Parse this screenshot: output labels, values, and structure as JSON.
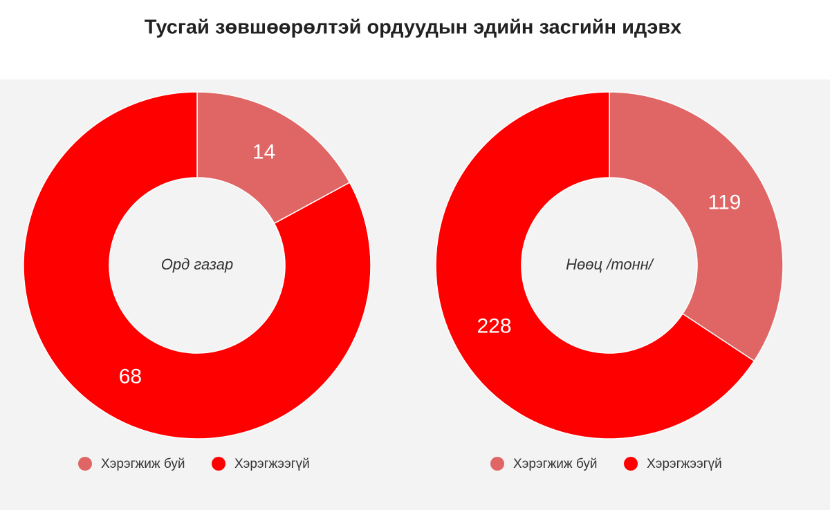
{
  "title": "Тусгай зөвшөөрөлтэй ордуудын эдийн засгийн идэвх",
  "chart_data": [
    {
      "type": "pie",
      "center_label": "Орд газар",
      "categories": [
        "Хэрэгжиж буй",
        "Хэрэгжээгүй"
      ],
      "values": [
        14,
        68
      ],
      "colors": [
        "#e06666",
        "#ff0000"
      ]
    },
    {
      "type": "pie",
      "center_label": "Нөөц /тонн/",
      "categories": [
        "Хэрэгжиж буй",
        "Хэрэгжээгүй"
      ],
      "values": [
        119,
        228
      ],
      "colors": [
        "#e06666",
        "#ff0000"
      ]
    }
  ]
}
